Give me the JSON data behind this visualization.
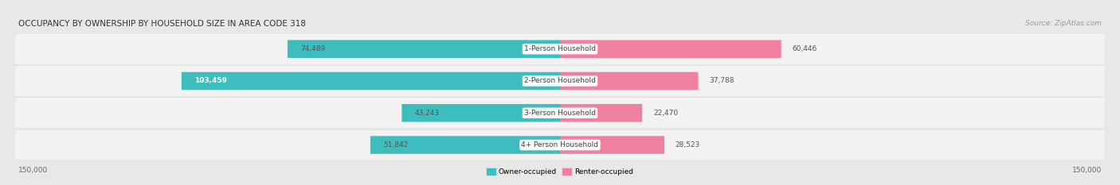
{
  "title": "OCCUPANCY BY OWNERSHIP BY HOUSEHOLD SIZE IN AREA CODE 318",
  "source": "Source: ZipAtlas.com",
  "categories": [
    "1-Person Household",
    "2-Person Household",
    "3-Person Household",
    "4+ Person Household"
  ],
  "owner_values": [
    74489,
    103459,
    43243,
    51842
  ],
  "renter_values": [
    60446,
    37788,
    22470,
    28523
  ],
  "max_val": 150000,
  "owner_color": "#3DBDBD",
  "renter_color": "#F080A0",
  "bg_color": "#e8e8e8",
  "row_bg_color": "#f2f2f2",
  "row_border_color": "#d8d8d8",
  "title_color": "#333333",
  "source_color": "#999999",
  "value_color_dark": "#555555",
  "value_color_light": "#ffffff",
  "label_bg_color": "#ffffff",
  "axis_label_color": "#666666"
}
